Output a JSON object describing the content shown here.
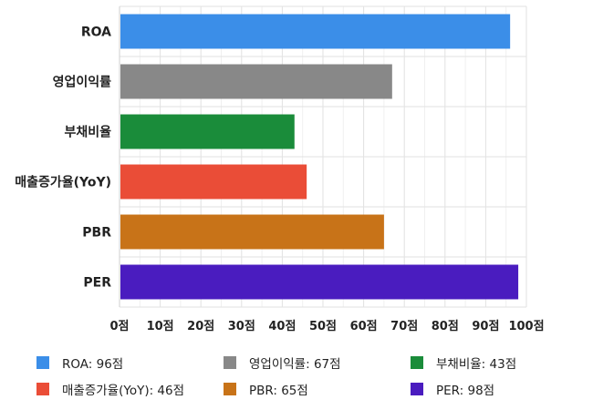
{
  "chart_data": {
    "type": "bar",
    "orientation": "horizontal",
    "categories": [
      "ROA",
      "영업이익률",
      "부채비율",
      "매출증가율(YoY)",
      "PBR",
      "PER"
    ],
    "values": [
      96,
      67,
      43,
      46,
      65,
      98
    ],
    "colors": [
      "#3b8ee8",
      "#888888",
      "#1a8c3a",
      "#ea4d37",
      "#c87318",
      "#4a1cbf"
    ],
    "x_ticks": [
      "0점",
      "10점",
      "20점",
      "30점",
      "40점",
      "50점",
      "60점",
      "70점",
      "80점",
      "90점",
      "100점"
    ],
    "xlim": [
      0,
      100
    ],
    "grid": true,
    "legend_position": "bottom",
    "legend": [
      "ROA: 96점",
      "매출증가율(YoY): 46점",
      "영업이익률: 67점",
      "PBR: 65점",
      "부채비율: 43점",
      "PER: 98점"
    ]
  }
}
